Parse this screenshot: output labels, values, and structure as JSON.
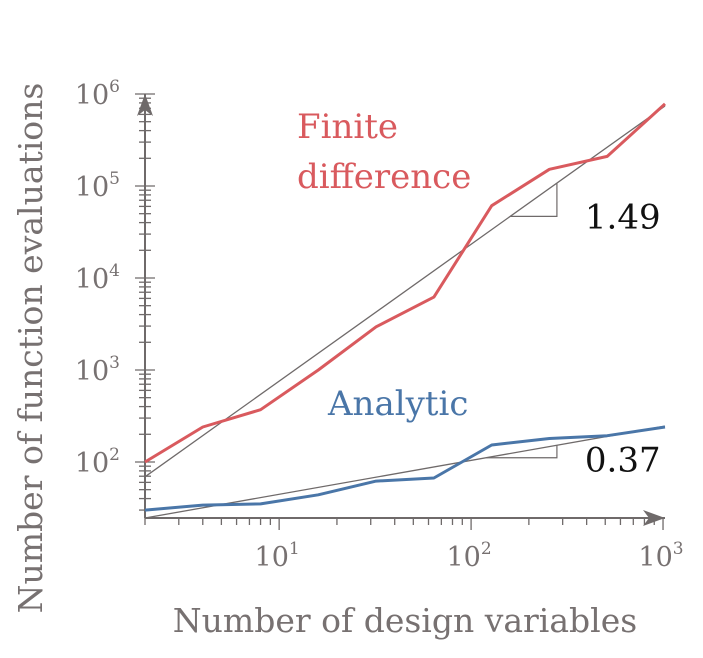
{
  "chart_data": {
    "type": "line",
    "xlabel": "Number of design variables",
    "ylabel": "Number of function evaluations",
    "xscale": "log",
    "yscale": "log",
    "xlim": [
      2,
      1024
    ],
    "ylim": [
      24.6,
      1000000
    ],
    "grid": false,
    "x_ticks": [
      {
        "base": "10",
        "exp": "1",
        "value": 10
      },
      {
        "base": "10",
        "exp": "2",
        "value": 100
      },
      {
        "base": "10",
        "exp": "3",
        "value": 1000
      }
    ],
    "y_ticks": [
      {
        "base": "10",
        "exp": "2",
        "value": 100
      },
      {
        "base": "10",
        "exp": "3",
        "value": 1000
      },
      {
        "base": "10",
        "exp": "4",
        "value": 10000
      },
      {
        "base": "10",
        "exp": "5",
        "value": 100000
      },
      {
        "base": "10",
        "exp": "6",
        "value": 1000000
      }
    ],
    "x": [
      2,
      4,
      8,
      16,
      32,
      64,
      128,
      256,
      512,
      1024
    ],
    "series": [
      {
        "name": "Finite difference",
        "label_lines": [
          "Finite",
          "difference"
        ],
        "color": "#d95a5e",
        "values": [
          100,
          240,
          370,
          1000,
          2950,
          6200,
          61000,
          152000,
          210000,
          780000
        ],
        "fit_slope": "1.49",
        "fit_start": [
          2,
          69
        ],
        "fit_end": [
          1024,
          740000
        ]
      },
      {
        "name": "Analytic",
        "label_lines": [
          "Analytic"
        ],
        "color": "#4a76a8",
        "values": [
          30,
          34,
          35,
          44,
          62,
          67,
          153,
          180,
          193,
          240
        ],
        "fit_slope": "0.37",
        "fit_start": [
          2,
          24.6
        ],
        "fit_end": [
          1024,
          245
        ]
      }
    ],
    "axis_color": "#6f6a6a",
    "fit_line_color": "#6f6a6a"
  }
}
